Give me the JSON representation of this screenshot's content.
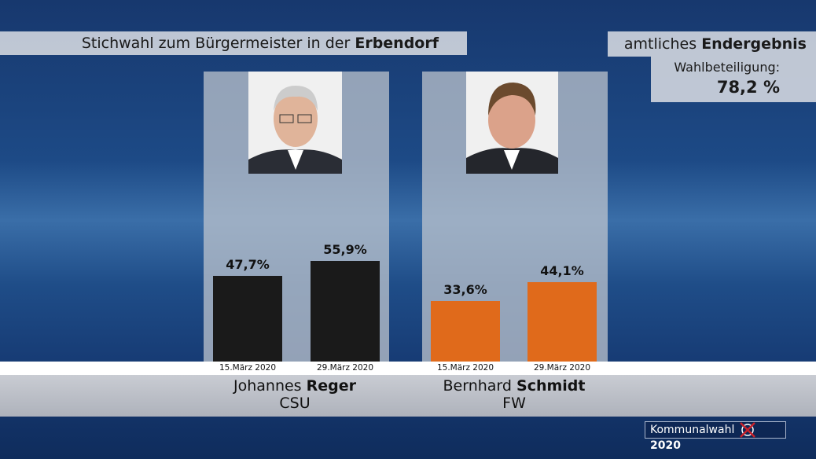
{
  "header": {
    "title_prefix": "Stichwahl zum Bürgermeister in der",
    "title_place": "Erbendorf",
    "result_prefix": "amtliches",
    "result_bold": "Endergebnis",
    "turnout_label": "Wahlbeteiligung:",
    "turnout_value": "78,2 %"
  },
  "candidates": [
    {
      "first": "Johannes",
      "last": "Reger",
      "party": "CSU",
      "color": "#1a1a1a"
    },
    {
      "first": "Bernhard",
      "last": "Schmidt",
      "party": "FW",
      "color": "#e06a1b"
    }
  ],
  "chart_data": {
    "type": "bar",
    "categories": [
      "15.März 2020",
      "29.März 2020"
    ],
    "series": [
      {
        "name": "Johannes Reger (CSU)",
        "values": [
          47.7,
          55.9
        ],
        "labels": [
          "47,7%",
          "55,9%"
        ]
      },
      {
        "name": "Bernhard Schmidt (FW)",
        "values": [
          33.6,
          44.1
        ],
        "labels": [
          "33,6%",
          "44,1%"
        ]
      }
    ],
    "ylim": [
      0,
      100
    ],
    "title": "Stichwahl zum Bürgermeister in der Erbendorf"
  },
  "footer": {
    "logo_text": "Kommunalwahl",
    "logo_year": "2020"
  }
}
